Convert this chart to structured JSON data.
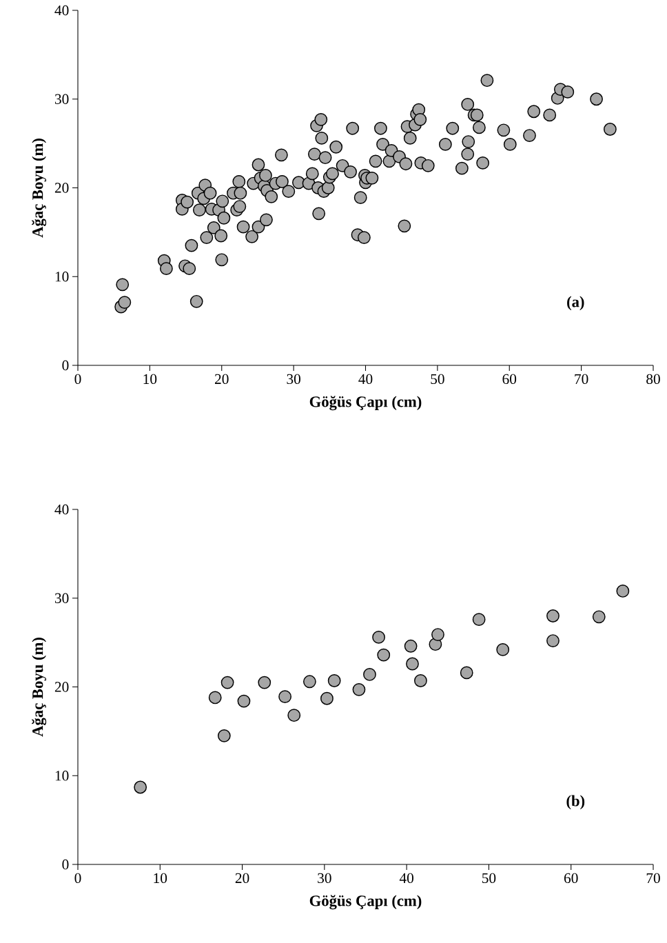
{
  "chart_data": [
    {
      "type": "scatter",
      "xlabel": "Göğüs Çapı (cm)",
      "ylabel": "Ağaç Boyu (m)",
      "annotations": [
        "(a)"
      ],
      "color": "#a6a6a6",
      "marker": "circle",
      "xlim": [
        0,
        80
      ],
      "ylim": [
        0,
        40
      ],
      "xticks": [
        0,
        10,
        20,
        30,
        40,
        50,
        60,
        70,
        80
      ],
      "yticks": [
        0,
        10,
        20,
        30,
        40
      ],
      "x": [
        6.0,
        6.2,
        6.5,
        12.0,
        12.3,
        14.9,
        15.5,
        15.8,
        16.5,
        14.5,
        14.5,
        15.2,
        16.7,
        16.9,
        17.5,
        17.7,
        17.9,
        18.4,
        18.6,
        18.9,
        19.6,
        19.9,
        20.0,
        20.1,
        20.3,
        21.6,
        22.1,
        22.4,
        22.5,
        22.6,
        23.0,
        24.2,
        24.4,
        25.1,
        25.1,
        25.4,
        25.9,
        26.1,
        26.2,
        26.3,
        26.9,
        27.5,
        28.3,
        28.4,
        29.3,
        30.7,
        32.1,
        32.6,
        32.9,
        33.2,
        33.4,
        33.5,
        33.8,
        33.9,
        34.2,
        34.4,
        34.8,
        35.0,
        35.4,
        35.9,
        36.8,
        37.9,
        38.2,
        38.9,
        39.3,
        39.8,
        40.0,
        39.9,
        40.2,
        40.9,
        41.4,
        42.1,
        42.4,
        43.3,
        43.6,
        44.7,
        45.6,
        45.4,
        45.8,
        46.2,
        46.9,
        47.1,
        47.4,
        47.6,
        47.7,
        48.7,
        51.1,
        52.1,
        53.4,
        54.2,
        54.2,
        54.3,
        55.1,
        55.5,
        55.8,
        56.3,
        56.9,
        59.2,
        60.1,
        62.8,
        63.4,
        65.6,
        66.7,
        67.1,
        68.1,
        72.1,
        74.0
      ],
      "values": [
        6.6,
        9.1,
        7.1,
        11.8,
        10.9,
        11.2,
        10.9,
        13.5,
        7.2,
        18.6,
        17.6,
        18.4,
        19.4,
        17.5,
        18.8,
        20.3,
        14.4,
        19.4,
        17.6,
        15.5,
        17.5,
        14.6,
        11.9,
        18.5,
        16.6,
        19.4,
        17.5,
        20.7,
        17.9,
        19.4,
        15.6,
        14.5,
        20.5,
        15.6,
        22.6,
        21.1,
        20.2,
        21.4,
        16.4,
        19.7,
        19.0,
        20.5,
        23.7,
        20.7,
        19.6,
        20.6,
        20.5,
        21.6,
        23.8,
        27.0,
        20.0,
        17.1,
        27.7,
        25.6,
        19.6,
        23.4,
        20.0,
        21.2,
        21.6,
        24.6,
        22.5,
        21.8,
        26.7,
        14.7,
        18.9,
        14.4,
        20.6,
        21.4,
        21.1,
        21.1,
        23.0,
        26.7,
        24.9,
        23.0,
        24.2,
        23.5,
        22.7,
        15.7,
        26.9,
        25.6,
        27.1,
        28.3,
        28.8,
        27.7,
        22.8,
        22.5,
        24.9,
        26.7,
        22.2,
        23.8,
        29.4,
        25.2,
        28.2,
        28.2,
        26.8,
        22.8,
        32.1,
        26.5,
        24.9,
        25.9,
        28.6,
        28.2,
        30.1,
        31.1,
        30.8,
        30.0,
        26.6
      ]
    },
    {
      "type": "scatter",
      "xlabel": "Göğüs Çapı (cm)",
      "ylabel": "Ağaç Boyu (m)",
      "annotations": [
        "(b)"
      ],
      "color": "#a6a6a6",
      "marker": "circle",
      "xlim": [
        0,
        70
      ],
      "ylim": [
        0,
        40
      ],
      "xticks": [
        0,
        10,
        20,
        30,
        40,
        50,
        60,
        70
      ],
      "yticks": [
        0,
        10,
        20,
        30,
        40
      ],
      "x": [
        7.6,
        16.7,
        17.8,
        18.2,
        20.2,
        22.7,
        25.2,
        26.3,
        28.2,
        30.3,
        31.2,
        34.2,
        35.5,
        36.6,
        37.2,
        40.5,
        40.7,
        41.7,
        43.5,
        43.8,
        47.3,
        48.8,
        51.7,
        57.8,
        57.8,
        63.4,
        66.3
      ],
      "values": [
        8.7,
        18.8,
        14.5,
        20.5,
        18.4,
        20.5,
        18.9,
        16.8,
        20.6,
        18.7,
        20.7,
        19.7,
        21.4,
        25.6,
        23.6,
        24.6,
        22.6,
        20.7,
        24.8,
        25.9,
        21.6,
        27.6,
        24.2,
        28.0,
        25.2,
        27.9,
        30.8
      ]
    }
  ]
}
